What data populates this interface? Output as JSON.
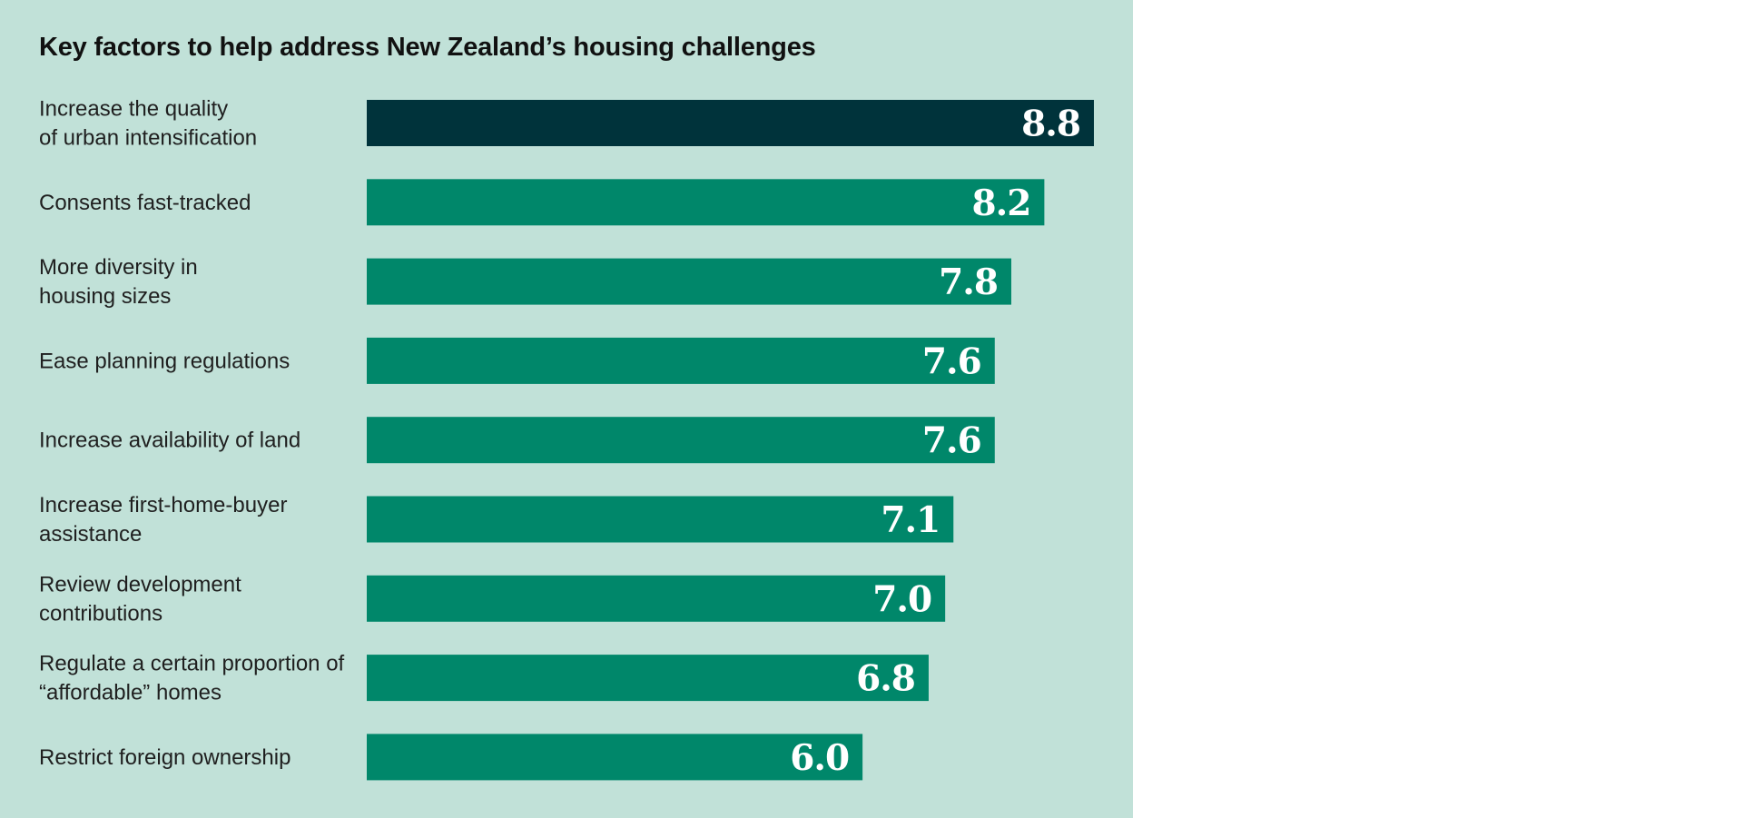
{
  "chart_data": {
    "type": "bar",
    "orientation": "horizontal",
    "title": "Key factors to help address New Zealand’s housing challenges",
    "categories": [
      [
        "Increase the quality",
        "of urban intensification"
      ],
      [
        "Consents fast-tracked"
      ],
      [
        "More diversity in",
        "housing sizes"
      ],
      [
        "Ease planning regulations"
      ],
      [
        "Increase availability of land"
      ],
      [
        "Increase first-home-buyer",
        "assistance"
      ],
      [
        "Review development",
        "contributions"
      ],
      [
        "Regulate a certain proportion of",
        "“affordable” homes"
      ],
      [
        "Restrict foreign ownership"
      ]
    ],
    "values": [
      8.8,
      8.2,
      7.8,
      7.6,
      7.6,
      7.1,
      7.0,
      6.8,
      6.0
    ],
    "value_labels": [
      "8.8",
      "8.2",
      "7.8",
      "7.6",
      "7.6",
      "7.1",
      "7.0",
      "6.8",
      "6.0"
    ],
    "highlight_index": 0,
    "colors": {
      "background": "#c1e1d8",
      "bar": "#00876a",
      "highlight": "#00333b",
      "value_text": "#ffffff"
    },
    "legend": "none",
    "grid": false
  }
}
